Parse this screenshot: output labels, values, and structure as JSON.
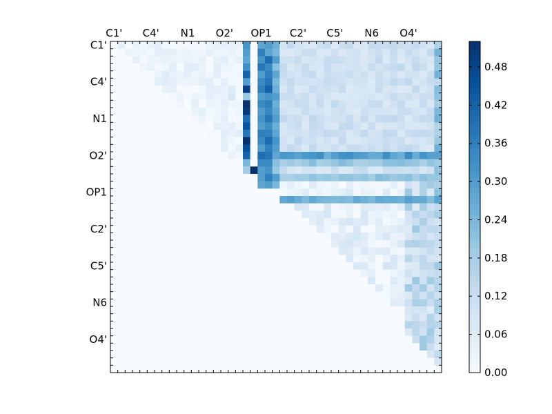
{
  "chart_data": {
    "type": "heatmap",
    "title": "",
    "xlabel": "",
    "ylabel": "",
    "grid": false,
    "colormap": "Blues",
    "colors": {
      "low": "#f7fbff",
      "high": "#08306b"
    },
    "n_cells": 45,
    "x_tick_labels": [
      "C1'",
      "C4'",
      "N1",
      "O2'",
      "OP1",
      "C2'",
      "C5'",
      "N6",
      "O4'"
    ],
    "y_tick_labels": [
      "C1'",
      "C4'",
      "N1",
      "O2'",
      "OP1",
      "C2'",
      "C5'",
      "N6",
      "O4'"
    ],
    "colorbar": {
      "range": [
        0.0,
        0.52
      ],
      "tick_labels": [
        "0.00",
        "0.06",
        "0.12",
        "0.18",
        "0.24",
        "0.30",
        "0.36",
        "0.42",
        "0.48"
      ],
      "tick_values": [
        0.0,
        0.06,
        0.12,
        0.18,
        0.24,
        0.3,
        0.36,
        0.42,
        0.48
      ]
    },
    "hot_columns": [
      {
        "col": 18,
        "values": [
          [
            0,
            0.32
          ],
          [
            1,
            0.3
          ],
          [
            2,
            0.28
          ],
          [
            3,
            0.33
          ],
          [
            4,
            0.42
          ],
          [
            5,
            0.3
          ],
          [
            6,
            0.49
          ],
          [
            7,
            0.2
          ],
          [
            8,
            0.52
          ],
          [
            9,
            0.5
          ],
          [
            10,
            0.4
          ],
          [
            11,
            0.45
          ],
          [
            12,
            0.38
          ],
          [
            13,
            0.52
          ],
          [
            14,
            0.46
          ],
          [
            15,
            0.42
          ],
          [
            16,
            0.24
          ],
          [
            17,
            0.18
          ]
        ]
      },
      {
        "col": 20,
        "values": [
          [
            0,
            0.28
          ],
          [
            1,
            0.36
          ],
          [
            2,
            0.32
          ],
          [
            3,
            0.38
          ],
          [
            4,
            0.3
          ],
          [
            5,
            0.34
          ],
          [
            6,
            0.36
          ],
          [
            7,
            0.3
          ],
          [
            8,
            0.34
          ],
          [
            9,
            0.3
          ],
          [
            10,
            0.32
          ],
          [
            11,
            0.3
          ],
          [
            12,
            0.36
          ],
          [
            13,
            0.34
          ],
          [
            14,
            0.3
          ],
          [
            15,
            0.4
          ],
          [
            16,
            0.34
          ],
          [
            17,
            0.3
          ],
          [
            18,
            0.3
          ]
        ]
      },
      {
        "col": 21,
        "values": [
          [
            0,
            0.3
          ],
          [
            1,
            0.28
          ],
          [
            2,
            0.4
          ],
          [
            3,
            0.34
          ],
          [
            4,
            0.36
          ],
          [
            5,
            0.38
          ],
          [
            6,
            0.42
          ],
          [
            7,
            0.32
          ],
          [
            8,
            0.36
          ],
          [
            9,
            0.34
          ],
          [
            10,
            0.38
          ],
          [
            11,
            0.33
          ],
          [
            12,
            0.36
          ],
          [
            13,
            0.4
          ],
          [
            14,
            0.36
          ],
          [
            15,
            0.38
          ],
          [
            16,
            0.34
          ],
          [
            17,
            0.32
          ],
          [
            18,
            0.36
          ]
        ]
      },
      {
        "col": 22,
        "values": [
          [
            0,
            0.26
          ],
          [
            1,
            0.24
          ],
          [
            2,
            0.3
          ],
          [
            3,
            0.22
          ],
          [
            4,
            0.28
          ],
          [
            5,
            0.24
          ],
          [
            6,
            0.26
          ],
          [
            7,
            0.3
          ],
          [
            8,
            0.26
          ],
          [
            9,
            0.28
          ],
          [
            10,
            0.3
          ],
          [
            11,
            0.26
          ],
          [
            12,
            0.28
          ],
          [
            13,
            0.32
          ],
          [
            14,
            0.3
          ],
          [
            15,
            0.28
          ],
          [
            16,
            0.22
          ],
          [
            17,
            0.2
          ],
          [
            18,
            0.3
          ]
        ]
      }
    ],
    "hot_rows": [
      {
        "row": 15,
        "range": [
          23,
          44
        ],
        "value": 0.3
      },
      {
        "row": 21,
        "range": [
          23,
          44
        ],
        "value": 0.26
      },
      {
        "row": 16,
        "range": [
          23,
          44
        ],
        "value": 0.2
      },
      {
        "row": 18,
        "range": [
          23,
          44
        ],
        "value": 0.2
      }
    ],
    "special_cells": [
      [
        17,
        19,
        0.52
      ],
      [
        19,
        20,
        0.28
      ],
      [
        19,
        21,
        0.3
      ],
      [
        19,
        22,
        0.24
      ],
      [
        6,
        16,
        0.06
      ],
      [
        7,
        16,
        0.08
      ]
    ]
  }
}
